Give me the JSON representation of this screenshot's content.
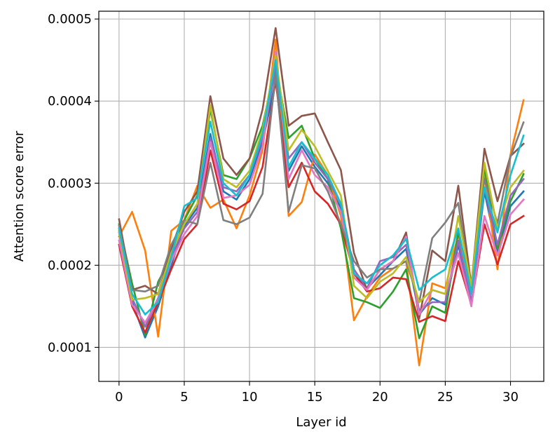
{
  "chart_data": {
    "type": "line",
    "title": "",
    "xlabel": "Layer id",
    "ylabel": "Attention score error",
    "xlim": [
      -1.55,
      32.55
    ],
    "ylim": [
      5.85e-05,
      0.0005095
    ],
    "xticks": [
      0,
      5,
      10,
      15,
      20,
      25,
      30
    ],
    "xtick_labels": [
      "0",
      "5",
      "10",
      "15",
      "20",
      "25",
      "30"
    ],
    "yticks": [
      0.0001,
      0.0002,
      0.0003,
      0.0004,
      0.0005
    ],
    "ytick_labels": [
      "0.0001",
      "0.0002",
      "0.0003",
      "0.0004",
      "0.0005"
    ],
    "grid": true,
    "legend": "none",
    "x": [
      0,
      1,
      2,
      3,
      4,
      5,
      6,
      7,
      8,
      9,
      10,
      11,
      12,
      13,
      14,
      15,
      16,
      17,
      18,
      19,
      20,
      21,
      22,
      23,
      24,
      25,
      26,
      27,
      28,
      29,
      30,
      31
    ],
    "series": [
      {
        "color": "#1f77b4",
        "values": [
          0.000245,
          0.000155,
          0.000112,
          0.00015,
          0.0002,
          0.000248,
          0.00027,
          0.00036,
          0.00029,
          0.00028,
          0.000305,
          0.00035,
          0.000425,
          0.000315,
          0.000345,
          0.00032,
          0.0003,
          0.00027,
          0.00019,
          0.000172,
          0.000188,
          0.000205,
          0.00022,
          0.00014,
          0.00016,
          0.000152,
          0.000225,
          0.000155,
          0.00029,
          0.000215,
          0.000272,
          0.00029
        ]
      },
      {
        "color": "#ff7f0e",
        "values": [
          0.000235,
          0.000265,
          0.000218,
          0.000113,
          0.000242,
          0.000255,
          0.000297,
          0.00027,
          0.00028,
          0.000245,
          0.000285,
          0.00034,
          0.000475,
          0.00026,
          0.000277,
          0.000335,
          0.00031,
          0.00026,
          0.000133,
          0.000162,
          0.000185,
          0.000196,
          0.000205,
          7.8e-05,
          0.000178,
          0.000172,
          0.000238,
          0.000165,
          0.00031,
          0.000195,
          0.000335,
          0.000401
        ]
      },
      {
        "color": "#2ca02c",
        "values": [
          0.00025,
          0.000178,
          0.000115,
          0.00018,
          0.00021,
          0.000255,
          0.000285,
          0.00039,
          0.00031,
          0.000305,
          0.00033,
          0.00037,
          0.000445,
          0.000355,
          0.00037,
          0.00033,
          0.000305,
          0.000245,
          0.00016,
          0.000155,
          0.000148,
          0.000168,
          0.000195,
          0.000111,
          0.00015,
          0.000142,
          0.00024,
          0.000175,
          0.00032,
          0.00022,
          0.000278,
          0.000311
        ]
      },
      {
        "color": "#d62728",
        "values": [
          0.000225,
          0.00015,
          0.000118,
          0.000155,
          0.000195,
          0.000232,
          0.00025,
          0.00034,
          0.000275,
          0.000268,
          0.000278,
          0.00032,
          0.000425,
          0.000295,
          0.000325,
          0.00029,
          0.000275,
          0.00025,
          0.00019,
          0.000168,
          0.000172,
          0.000185,
          0.000183,
          0.000131,
          0.000138,
          0.000132,
          0.000205,
          0.000152,
          0.00025,
          0.000201,
          0.00025,
          0.00026
        ]
      },
      {
        "color": "#9467bd",
        "values": [
          0.00024,
          0.00016,
          0.000125,
          0.00016,
          0.00021,
          0.000245,
          0.000265,
          0.000355,
          0.000295,
          0.00029,
          0.00031,
          0.000355,
          0.00044,
          0.00033,
          0.00035,
          0.000325,
          0.000305,
          0.000275,
          0.000195,
          0.000172,
          0.000205,
          0.00021,
          0.000225,
          0.000145,
          0.000155,
          0.000155,
          0.00023,
          0.000155,
          0.000295,
          0.000225,
          0.000285,
          0.000305
        ]
      },
      {
        "color": "#8c564b",
        "values": [
          0.000256,
          0.00017,
          0.000175,
          0.000165,
          0.00022,
          0.000265,
          0.00029,
          0.000406,
          0.00033,
          0.00031,
          0.00033,
          0.00039,
          0.000489,
          0.00037,
          0.000382,
          0.000385,
          0.00035,
          0.000316,
          0.000215,
          0.00017,
          0.000195,
          0.000205,
          0.00024,
          0.000135,
          0.000218,
          0.000205,
          0.000297,
          0.000175,
          0.000342,
          0.000278,
          0.000333,
          0.000348
        ]
      },
      {
        "color": "#e377c2",
        "values": [
          0.00023,
          0.000152,
          0.00013,
          0.000158,
          0.000205,
          0.000238,
          0.00026,
          0.00035,
          0.000282,
          0.000285,
          0.000298,
          0.000345,
          0.00046,
          0.000305,
          0.00034,
          0.00031,
          0.000295,
          0.000265,
          0.000185,
          0.00017,
          0.000195,
          0.000205,
          0.000235,
          0.00014,
          0.00017,
          0.000165,
          0.000215,
          0.00015,
          0.00026,
          0.000212,
          0.000262,
          0.00028
        ]
      },
      {
        "color": "#7f7f7f",
        "values": [
          0.000248,
          0.00017,
          0.000168,
          0.000175,
          0.000225,
          0.000255,
          0.00025,
          0.000325,
          0.000255,
          0.00025,
          0.000258,
          0.000287,
          0.000433,
          0.000265,
          0.000322,
          0.000318,
          0.00029,
          0.00025,
          0.000205,
          0.000185,
          0.000195,
          0.000196,
          0.000205,
          0.000155,
          0.000233,
          0.000252,
          0.000276,
          0.000165,
          0.000305,
          0.000251,
          0.000332,
          0.000374
        ]
      },
      {
        "color": "#bcbd22",
        "values": [
          0.000242,
          0.000158,
          0.00016,
          0.000165,
          0.000215,
          0.00025,
          0.000275,
          0.000395,
          0.000305,
          0.000295,
          0.000315,
          0.000365,
          0.000455,
          0.00034,
          0.000365,
          0.000345,
          0.000315,
          0.000285,
          0.000175,
          0.00016,
          0.00018,
          0.00019,
          0.00021,
          0.000155,
          0.00017,
          0.000165,
          0.00026,
          0.000175,
          0.000325,
          0.000245,
          0.000295,
          0.000315
        ]
      },
      {
        "color": "#17becf",
        "values": [
          0.000245,
          0.000165,
          0.00014,
          0.000155,
          0.00021,
          0.000272,
          0.000282,
          0.000375,
          0.0003,
          0.000285,
          0.00031,
          0.00036,
          0.00045,
          0.00032,
          0.00035,
          0.00033,
          0.00031,
          0.000275,
          0.00019,
          0.000178,
          0.0002,
          0.000212,
          0.000232,
          0.00017,
          0.000185,
          0.000195,
          0.000245,
          0.000165,
          0.000295,
          0.00024,
          0.00031,
          0.000358
        ]
      }
    ]
  }
}
